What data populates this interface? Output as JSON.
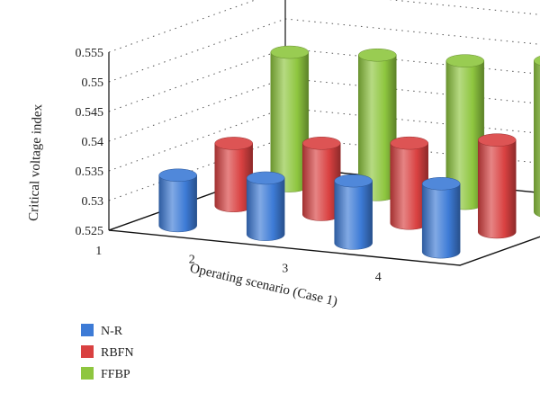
{
  "chart_data": {
    "type": "bar",
    "style": "3d-cylinder",
    "categories": [
      "1",
      "2",
      "3",
      "4"
    ],
    "series": [
      {
        "name": "N-R",
        "values": [
          0.5335,
          0.5345,
          0.5355,
          0.5365
        ],
        "color": "#3d7bd6"
      },
      {
        "name": "RBFN",
        "values": [
          0.5355,
          0.537,
          0.5385,
          0.5405
        ],
        "color": "#d94141"
      },
      {
        "name": "FFBP",
        "values": [
          0.5475,
          0.5485,
          0.549,
          0.5505
        ],
        "color": "#8ec63f"
      }
    ],
    "xlabel": "Operating scenario (Case 1)",
    "ylabel": "Critical voltage index",
    "ylim": [
      0.525,
      0.555
    ],
    "yticks": [
      "0.525",
      "0.53",
      "0.535",
      "0.54",
      "0.545",
      "0.55",
      "0.555"
    ],
    "grid": true,
    "legend_position": "bottom-left"
  }
}
